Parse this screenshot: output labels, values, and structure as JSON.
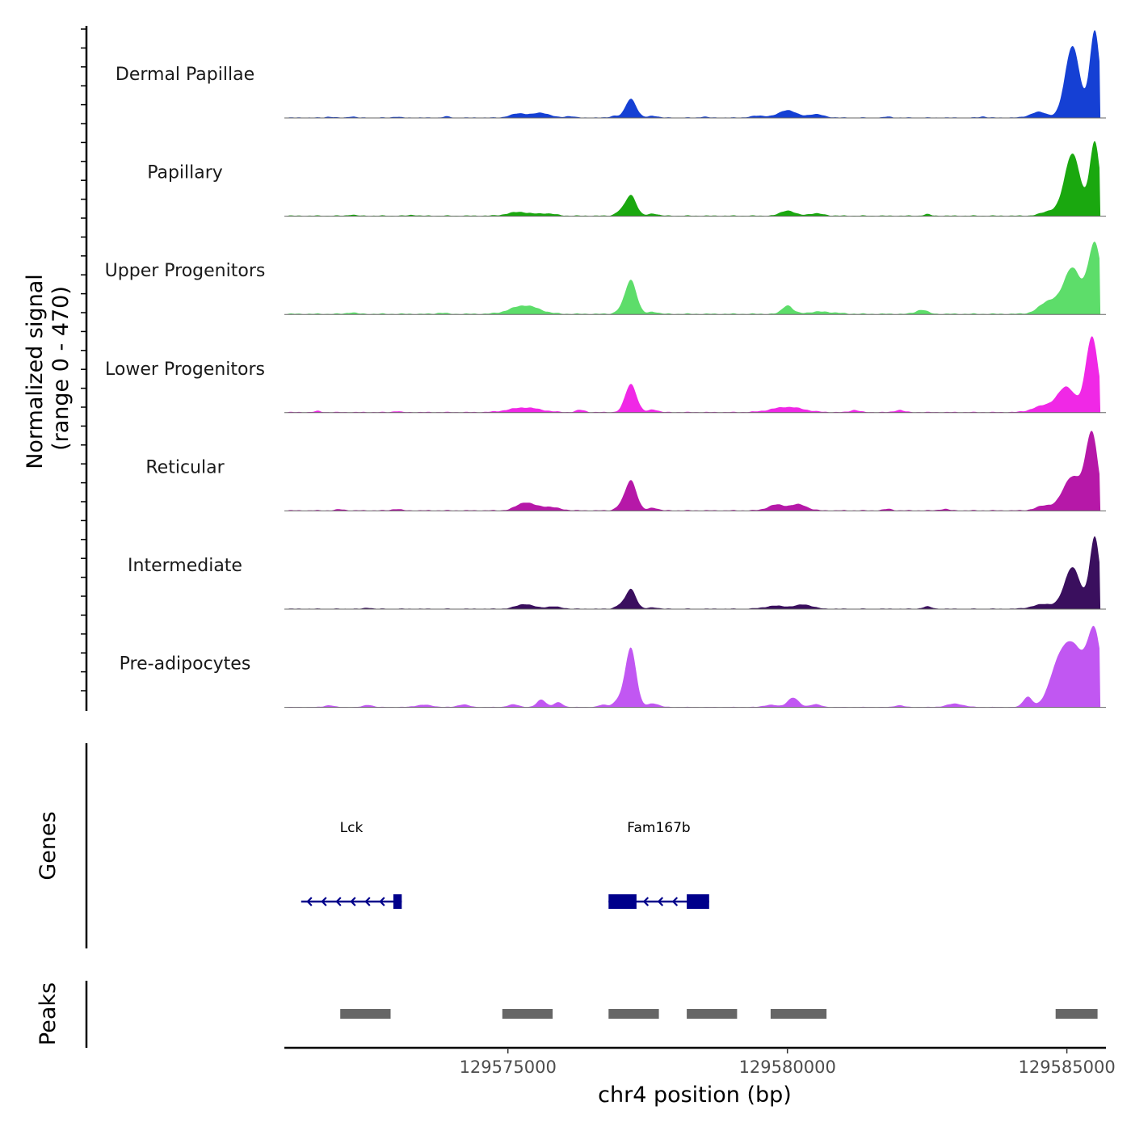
{
  "chart_data": {
    "type": "area",
    "chromosome": "chr4",
    "xlabel": "chr4 position (bp)",
    "ylabel": "Normalized signal",
    "ylabel_range": "(range 0 - 470)",
    "ylim": [
      0,
      470
    ],
    "xlim": [
      129571000,
      129585700
    ],
    "x_ticks": [
      129575000,
      129580000,
      129585000
    ],
    "x_tick_labels": [
      "129575000",
      "129580000",
      "129585000"
    ],
    "genes_label": "Genes",
    "peaks_label": "Peaks",
    "series": [
      {
        "name": "Dermal Papillae",
        "color": "#1540d4",
        "start": 129571000,
        "end": 129585600,
        "baseline": 4,
        "peaks": [
          {
            "pos": 129571800,
            "height": 5,
            "width": 60
          },
          {
            "pos": 129572200,
            "height": 6,
            "width": 60
          },
          {
            "pos": 129573000,
            "height": 5,
            "width": 60
          },
          {
            "pos": 129573900,
            "height": 6,
            "width": 60
          },
          {
            "pos": 129575200,
            "height": 22,
            "width": 150
          },
          {
            "pos": 129575600,
            "height": 25,
            "width": 150
          },
          {
            "pos": 129576100,
            "height": 8,
            "width": 80
          },
          {
            "pos": 129576900,
            "height": 10,
            "width": 70
          },
          {
            "pos": 129577200,
            "height": 100,
            "width": 95
          },
          {
            "pos": 129577600,
            "height": 10,
            "width": 80
          },
          {
            "pos": 129578500,
            "height": 5,
            "width": 60
          },
          {
            "pos": 129579500,
            "height": 10,
            "width": 150
          },
          {
            "pos": 129580000,
            "height": 40,
            "width": 150
          },
          {
            "pos": 129580500,
            "height": 18,
            "width": 150
          },
          {
            "pos": 129581800,
            "height": 5,
            "width": 60
          },
          {
            "pos": 129583500,
            "height": 6,
            "width": 60
          },
          {
            "pos": 129584500,
            "height": 30,
            "width": 150
          },
          {
            "pos": 129585100,
            "height": 380,
            "width": 130
          },
          {
            "pos": 129585500,
            "height": 460,
            "width": 90
          }
        ]
      },
      {
        "name": "Papillary",
        "color": "#1aa80f",
        "start": 129571000,
        "end": 129585600,
        "baseline": 5,
        "peaks": [
          {
            "pos": 129572200,
            "height": 6,
            "width": 60
          },
          {
            "pos": 129573300,
            "height": 5,
            "width": 60
          },
          {
            "pos": 129575200,
            "height": 20,
            "width": 200
          },
          {
            "pos": 129575700,
            "height": 12,
            "width": 150
          },
          {
            "pos": 129577000,
            "height": 20,
            "width": 80
          },
          {
            "pos": 129577200,
            "height": 110,
            "width": 95
          },
          {
            "pos": 129577600,
            "height": 12,
            "width": 80
          },
          {
            "pos": 129580000,
            "height": 28,
            "width": 120
          },
          {
            "pos": 129580500,
            "height": 12,
            "width": 150
          },
          {
            "pos": 129582500,
            "height": 8,
            "width": 60
          },
          {
            "pos": 129584700,
            "height": 25,
            "width": 150
          },
          {
            "pos": 129585100,
            "height": 330,
            "width": 140
          },
          {
            "pos": 129585500,
            "height": 390,
            "width": 90
          }
        ]
      },
      {
        "name": "Upper Progenitors",
        "color": "#5ddd6a",
        "start": 129571000,
        "end": 129585600,
        "baseline": 6,
        "peaks": [
          {
            "pos": 129572200,
            "height": 8,
            "width": 80
          },
          {
            "pos": 129573800,
            "height": 6,
            "width": 80
          },
          {
            "pos": 129575300,
            "height": 45,
            "width": 250
          },
          {
            "pos": 129577000,
            "height": 15,
            "width": 80
          },
          {
            "pos": 129577200,
            "height": 180,
            "width": 100
          },
          {
            "pos": 129577600,
            "height": 12,
            "width": 80
          },
          {
            "pos": 129580000,
            "height": 45,
            "width": 90
          },
          {
            "pos": 129580600,
            "height": 12,
            "width": 250
          },
          {
            "pos": 129582400,
            "height": 22,
            "width": 100
          },
          {
            "pos": 129584700,
            "height": 70,
            "width": 180
          },
          {
            "pos": 129585100,
            "height": 240,
            "width": 150
          },
          {
            "pos": 129585500,
            "height": 375,
            "width": 120
          }
        ]
      },
      {
        "name": "Lower Progenitors",
        "color": "#f028e6",
        "start": 129571000,
        "end": 129585600,
        "baseline": 5,
        "peaks": [
          {
            "pos": 129571600,
            "height": 6,
            "width": 60
          },
          {
            "pos": 129573000,
            "height": 6,
            "width": 60
          },
          {
            "pos": 129575300,
            "height": 25,
            "width": 280
          },
          {
            "pos": 129576300,
            "height": 12,
            "width": 80
          },
          {
            "pos": 129577200,
            "height": 150,
            "width": 100
          },
          {
            "pos": 129577600,
            "height": 15,
            "width": 80
          },
          {
            "pos": 129580000,
            "height": 28,
            "width": 280
          },
          {
            "pos": 129581200,
            "height": 12,
            "width": 80
          },
          {
            "pos": 129582000,
            "height": 12,
            "width": 80
          },
          {
            "pos": 129584600,
            "height": 35,
            "width": 200
          },
          {
            "pos": 129585000,
            "height": 130,
            "width": 160
          },
          {
            "pos": 129585450,
            "height": 400,
            "width": 110
          }
        ]
      },
      {
        "name": "Reticular",
        "color": "#b618a8",
        "start": 129571000,
        "end": 129585600,
        "baseline": 5,
        "peaks": [
          {
            "pos": 129572000,
            "height": 6,
            "width": 80
          },
          {
            "pos": 129573000,
            "height": 8,
            "width": 80
          },
          {
            "pos": 129575300,
            "height": 40,
            "width": 150
          },
          {
            "pos": 129575700,
            "height": 20,
            "width": 200
          },
          {
            "pos": 129577000,
            "height": 18,
            "width": 80
          },
          {
            "pos": 129577200,
            "height": 160,
            "width": 100
          },
          {
            "pos": 129577600,
            "height": 15,
            "width": 80
          },
          {
            "pos": 129579800,
            "height": 30,
            "width": 150
          },
          {
            "pos": 129580200,
            "height": 32,
            "width": 150
          },
          {
            "pos": 129581800,
            "height": 8,
            "width": 80
          },
          {
            "pos": 129582800,
            "height": 8,
            "width": 80
          },
          {
            "pos": 129584600,
            "height": 25,
            "width": 150
          },
          {
            "pos": 129585100,
            "height": 180,
            "width": 170
          },
          {
            "pos": 129585450,
            "height": 400,
            "width": 110
          }
        ]
      },
      {
        "name": "Intermediate",
        "color": "#3a0f5e",
        "start": 129571000,
        "end": 129585600,
        "baseline": 4,
        "peaks": [
          {
            "pos": 129572500,
            "height": 6,
            "width": 60
          },
          {
            "pos": 129575300,
            "height": 25,
            "width": 150
          },
          {
            "pos": 129575800,
            "height": 12,
            "width": 150
          },
          {
            "pos": 129577000,
            "height": 18,
            "width": 80
          },
          {
            "pos": 129577200,
            "height": 105,
            "width": 90
          },
          {
            "pos": 129577600,
            "height": 8,
            "width": 80
          },
          {
            "pos": 129579800,
            "height": 16,
            "width": 200
          },
          {
            "pos": 129580300,
            "height": 22,
            "width": 150
          },
          {
            "pos": 129582500,
            "height": 12,
            "width": 80
          },
          {
            "pos": 129584600,
            "height": 25,
            "width": 200
          },
          {
            "pos": 129585100,
            "height": 220,
            "width": 140
          },
          {
            "pos": 129585500,
            "height": 380,
            "width": 90
          }
        ]
      },
      {
        "name": "Pre-adipocytes",
        "color": "#c157f2",
        "start": 129571000,
        "end": 129585600,
        "baseline": 3,
        "peaks": [
          {
            "pos": 129571800,
            "height": 10,
            "width": 80
          },
          {
            "pos": 129572500,
            "height": 12,
            "width": 80
          },
          {
            "pos": 129573500,
            "height": 12,
            "width": 150
          },
          {
            "pos": 129574200,
            "height": 14,
            "width": 100
          },
          {
            "pos": 129575100,
            "height": 14,
            "width": 100
          },
          {
            "pos": 129575600,
            "height": 40,
            "width": 80
          },
          {
            "pos": 129575900,
            "height": 25,
            "width": 80
          },
          {
            "pos": 129576700,
            "height": 12,
            "width": 80
          },
          {
            "pos": 129577000,
            "height": 40,
            "width": 100
          },
          {
            "pos": 129577200,
            "height": 310,
            "width": 95
          },
          {
            "pos": 129577600,
            "height": 20,
            "width": 100
          },
          {
            "pos": 129579700,
            "height": 12,
            "width": 120
          },
          {
            "pos": 129580100,
            "height": 50,
            "width": 100
          },
          {
            "pos": 129580500,
            "height": 15,
            "width": 100
          },
          {
            "pos": 129582000,
            "height": 10,
            "width": 80
          },
          {
            "pos": 129583000,
            "height": 18,
            "width": 150
          },
          {
            "pos": 129584300,
            "height": 55,
            "width": 80
          },
          {
            "pos": 129584800,
            "height": 110,
            "width": 150
          },
          {
            "pos": 129585100,
            "height": 330,
            "width": 220
          },
          {
            "pos": 129585500,
            "height": 360,
            "width": 120
          }
        ]
      }
    ],
    "genes": [
      {
        "name": "Lck",
        "start": 129571300,
        "end": 129573100,
        "strand": "-",
        "color": "#00008b",
        "exons": [
          {
            "start": 129572950,
            "end": 129573100
          }
        ]
      },
      {
        "name": "Fam167b",
        "start": 129576800,
        "end": 129578600,
        "strand": "-",
        "color": "#00008b",
        "exons": [
          {
            "start": 129576800,
            "end": 129577300
          },
          {
            "start": 129578200,
            "end": 129578600
          }
        ]
      }
    ],
    "peaks": [
      {
        "start": 129572000,
        "end": 129572900
      },
      {
        "start": 129574900,
        "end": 129575800
      },
      {
        "start": 129576800,
        "end": 129577700
      },
      {
        "start": 129578200,
        "end": 129579100
      },
      {
        "start": 129579700,
        "end": 129580700
      },
      {
        "start": 129584800,
        "end": 129585550
      }
    ],
    "peaks_color": "#666666"
  }
}
